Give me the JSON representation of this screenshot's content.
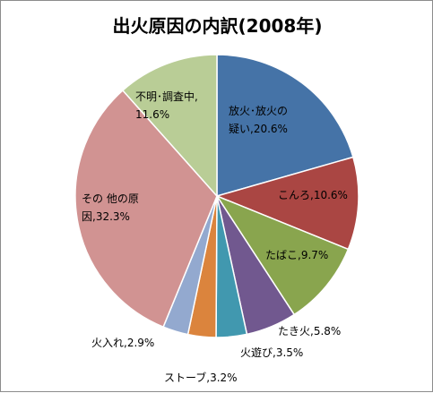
{
  "chart_data": {
    "type": "pie",
    "title": "出火原因の内訳(2008年)",
    "start_angle_deg": 0,
    "direction": "clockwise",
    "slices": [
      {
        "label": "放火･放火の疑い",
        "value": 20.6,
        "label_text": "放火･放火の疑い,20.6%",
        "color": "#4573a7"
      },
      {
        "label": "こんろ",
        "value": 10.6,
        "label_text": "こんろ,10.6%",
        "color": "#aa4643"
      },
      {
        "label": "たばこ",
        "value": 9.7,
        "label_text": "たばこ,9.7%",
        "color": "#89a54e"
      },
      {
        "label": "たき火",
        "value": 5.8,
        "label_text": "たき火,5.8%",
        "color": "#71588f"
      },
      {
        "label": "火遊び",
        "value": 3.5,
        "label_text": "火遊び,3.5%",
        "color": "#4198af"
      },
      {
        "label": "ストーブ",
        "value": 3.2,
        "label_text": "ストーブ,3.2%",
        "color": "#db843d"
      },
      {
        "label": "火入れ",
        "value": 2.9,
        "label_text": "火入れ,2.9%",
        "color": "#93a9cf"
      },
      {
        "label": "その他の原因",
        "value": 32.3,
        "label_text": "その 他の原因,32.3%",
        "color": "#d19392"
      },
      {
        "label": "不明･調査中",
        "value": 11.6,
        "label_text": "不明･調査中,11.6%",
        "color": "#b9cd96"
      }
    ],
    "legend": "none",
    "data_labels": "category and value"
  }
}
